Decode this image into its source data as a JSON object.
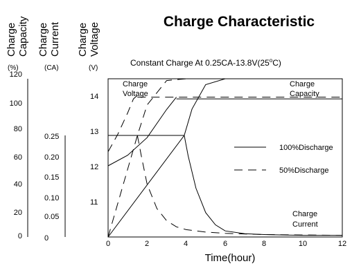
{
  "chart_data": {
    "type": "line",
    "title": "Charge Characteristic",
    "subtitle": "Constant Charge At 0.25CA-13.8V(25°C)",
    "subtitle_main": "Constant Charge At 0.25CA-13.8V(25",
    "subtitle_deg": "o",
    "subtitle_tail": "C)",
    "xlabel": "Time(hour)",
    "xlim": [
      0,
      12
    ],
    "x_ticks": [
      "0",
      "2",
      "4",
      "6",
      "8",
      "10",
      "12"
    ],
    "axes": {
      "capacity": {
        "label_lines": [
          "Charge",
          "Capacity"
        ],
        "unit": "(%)",
        "ticks": [
          "0",
          "20",
          "40",
          "60",
          "80",
          "100",
          "120"
        ],
        "ylim": [
          0,
          120
        ]
      },
      "current": {
        "label_lines": [
          "Charge",
          "Current"
        ],
        "unit": "(CA)",
        "ticks": [
          "0",
          "0.05",
          "0.10",
          "0.15",
          "0.20",
          "0.25"
        ],
        "ylim": [
          0,
          0.25
        ]
      },
      "voltage": {
        "label_lines": [
          "Charge",
          "Voltage"
        ],
        "unit": "(V)",
        "ticks": [
          "11",
          "12",
          "13",
          "14"
        ],
        "ylim": [
          10,
          14
        ]
      }
    },
    "legend": [
      {
        "label": "100%Discharge",
        "style": "solid"
      },
      {
        "label": "50%Discharge",
        "style": "dashed"
      }
    ],
    "annotations": {
      "charge_voltage": [
        "Charge",
        "Voltage"
      ],
      "charge_capacity": [
        "Charge",
        "Capacity"
      ],
      "charge_current": [
        "Charge",
        "Current"
      ]
    },
    "series": [
      {
        "axis": "voltage",
        "discharge": "100%",
        "style": "solid",
        "x": [
          0,
          1,
          2,
          3,
          3.5
        ],
        "y": [
          12.0,
          12.3,
          12.8,
          13.6,
          13.95
        ]
      },
      {
        "axis": "voltage",
        "discharge": "100%",
        "style": "solid",
        "x": [
          3.5,
          12
        ],
        "y": [
          13.9,
          13.9
        ]
      },
      {
        "axis": "voltage",
        "discharge": "50%",
        "style": "dashed",
        "x": [
          0,
          0.5,
          1,
          1.3,
          1.5
        ],
        "y": [
          12.4,
          12.9,
          13.5,
          13.9,
          14.0
        ]
      },
      {
        "axis": "voltage",
        "discharge": "50%",
        "style": "dashed",
        "x": [
          1.5,
          12
        ],
        "y": [
          13.95,
          13.95
        ]
      },
      {
        "axis": "current",
        "discharge": "100%",
        "style": "solid",
        "x": [
          0,
          3.9
        ],
        "y": [
          0.25,
          0.25
        ]
      },
      {
        "axis": "current",
        "discharge": "100%",
        "style": "solid",
        "x": [
          3.9,
          4.1,
          4.5,
          5,
          5.5,
          6,
          7,
          8,
          9,
          10,
          12
        ],
        "y": [
          0.25,
          0.2,
          0.12,
          0.06,
          0.03,
          0.015,
          0.008,
          0.006,
          0.005,
          0.004,
          0.004
        ]
      },
      {
        "axis": "current",
        "discharge": "50%",
        "style": "dashed",
        "x": [
          1.5,
          1.7,
          2,
          2.5,
          3,
          3.5,
          4,
          5,
          6,
          8,
          10,
          12
        ],
        "y": [
          0.25,
          0.2,
          0.13,
          0.07,
          0.04,
          0.025,
          0.018,
          0.012,
          0.009,
          0.006,
          0.005,
          0.004
        ]
      },
      {
        "axis": "capacity",
        "discharge": "100%",
        "style": "solid",
        "x": [
          0,
          3.9,
          4.3,
          5,
          6,
          8,
          10,
          12
        ],
        "y": [
          0,
          50,
          63,
          75,
          80,
          83,
          85,
          86
        ]
      },
      {
        "axis": "capacity",
        "discharge": "50%",
        "style": "dashed",
        "x": [
          0,
          1.5,
          2,
          3,
          4,
          6,
          8,
          10,
          12
        ],
        "y": [
          0,
          50,
          65,
          77,
          80,
          83,
          86,
          88,
          90
        ]
      }
    ]
  }
}
